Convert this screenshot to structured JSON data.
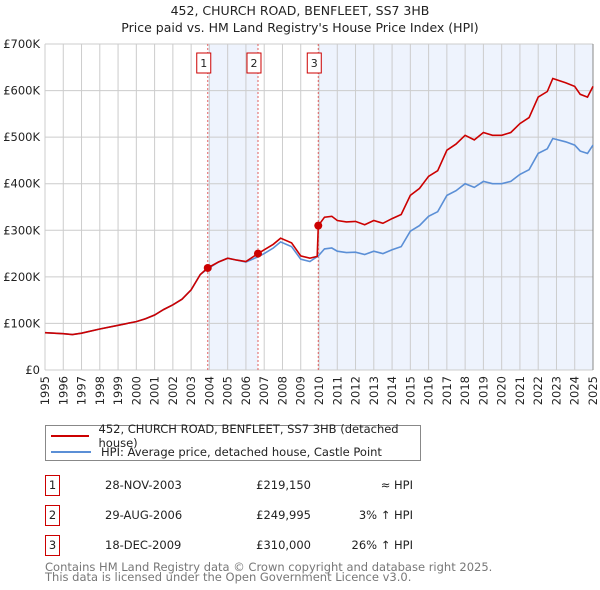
{
  "chart_data": {
    "type": "line",
    "title": "452, CHURCH ROAD, BENFLEET, SS7 3HB",
    "subtitle": "Price paid vs. HM Land Registry's House Price Index (HPI)",
    "xlim": [
      1995,
      2025
    ],
    "ylim": [
      0,
      700000
    ],
    "x_ticks": [
      "1995",
      "1996",
      "1997",
      "1998",
      "1999",
      "2000",
      "2001",
      "2002",
      "2003",
      "2004",
      "2005",
      "2006",
      "2007",
      "2008",
      "2009",
      "2010",
      "2011",
      "2012",
      "2013",
      "2014",
      "2015",
      "2016",
      "2017",
      "2018",
      "2019",
      "2020",
      "2021",
      "2022",
      "2023",
      "2024",
      "2025"
    ],
    "y_ticks": [
      {
        "v": 0,
        "label": "£0"
      },
      {
        "v": 100000,
        "label": "£100K"
      },
      {
        "v": 200000,
        "label": "£200K"
      },
      {
        "v": 300000,
        "label": "£300K"
      },
      {
        "v": 400000,
        "label": "£400K"
      },
      {
        "v": 500000,
        "label": "£500K"
      },
      {
        "v": 600000,
        "label": "£600K"
      },
      {
        "v": 700000,
        "label": "£700K"
      }
    ],
    "grid": true,
    "series": [
      {
        "name": "452, CHURCH ROAD, BENFLEET, SS7 3HB (detached house)",
        "color": "#cc0000",
        "x": [
          1995,
          1996,
          1996.5,
          1997,
          1998,
          1999,
          2000,
          2000.5,
          2001,
          2001.5,
          2002,
          2002.5,
          2003,
          2003.5,
          2003.9,
          2004.5,
          2005,
          2005.5,
          2006,
          2006.66,
          2007,
          2007.5,
          2007.9,
          2008.5,
          2009,
          2009.5,
          2009.9,
          2009.96,
          2010.3,
          2010.7,
          2011,
          2011.5,
          2012,
          2012.5,
          2013,
          2013.5,
          2014,
          2014.5,
          2015,
          2015.5,
          2016,
          2016.5,
          2017,
          2017.5,
          2018,
          2018.5,
          2019,
          2019.5,
          2020,
          2020.5,
          2021,
          2021.5,
          2022,
          2022.5,
          2022.8,
          2023.5,
          2024,
          2024.3,
          2024.7,
          2025
        ],
        "y": [
          80000,
          78000,
          76000,
          79000,
          88000,
          96000,
          104000,
          110000,
          118000,
          130000,
          140000,
          152000,
          172000,
          205000,
          219150,
          232000,
          240000,
          236000,
          233000,
          249995,
          258000,
          270000,
          283000,
          273000,
          245000,
          240000,
          244000,
          310000,
          328000,
          330000,
          321000,
          318000,
          319000,
          312000,
          321000,
          315000,
          325000,
          334000,
          375000,
          390000,
          416000,
          428000,
          472000,
          485000,
          504000,
          494000,
          510000,
          504000,
          504000,
          510000,
          529000,
          542000,
          586000,
          598000,
          626000,
          617000,
          609000,
          592000,
          586000,
          609000
        ]
      },
      {
        "name": "HPI: Average price, detached house, Castle Point",
        "color": "#5b8fd6",
        "x": [
          1995,
          1996,
          1996.5,
          1997,
          1998,
          1999,
          2000,
          2000.5,
          2001,
          2001.5,
          2002,
          2002.5,
          2003,
          2003.5,
          2003.9,
          2004.5,
          2005,
          2005.5,
          2006,
          2006.66,
          2007,
          2007.5,
          2007.9,
          2008.5,
          2009,
          2009.5,
          2009.96,
          2010.3,
          2010.7,
          2011,
          2011.5,
          2012,
          2012.5,
          2013,
          2013.5,
          2014,
          2014.5,
          2015,
          2015.5,
          2016,
          2016.5,
          2017,
          2017.5,
          2018,
          2018.5,
          2019,
          2019.5,
          2020,
          2020.5,
          2021,
          2021.5,
          2022,
          2022.5,
          2022.8,
          2023.5,
          2024,
          2024.3,
          2024.7,
          2025
        ],
        "y": [
          80000,
          78000,
          76000,
          79000,
          88000,
          96000,
          104000,
          110000,
          118000,
          130000,
          140000,
          152000,
          172000,
          205000,
          217000,
          232000,
          240000,
          236000,
          232000,
          243000,
          250000,
          262000,
          275000,
          265000,
          238000,
          233000,
          245000,
          260000,
          262000,
          255000,
          252000,
          253000,
          248000,
          255000,
          250000,
          258000,
          265000,
          298000,
          310000,
          330000,
          340000,
          375000,
          385000,
          400000,
          392000,
          405000,
          400000,
          400000,
          405000,
          420000,
          430000,
          465000,
          475000,
          497000,
          490000,
          483000,
          470000,
          465000,
          483000
        ]
      }
    ],
    "sales": [
      {
        "label": "1",
        "x": 2003.91,
        "price": 219150
      },
      {
        "label": "2",
        "x": 2006.66,
        "price": 249995
      },
      {
        "label": "3",
        "x": 2009.96,
        "price": 310000
      }
    ],
    "shaded_color": "#eef3fd",
    "legend_position": "below"
  },
  "legend": [
    {
      "label": "452, CHURCH ROAD, BENFLEET, SS7 3HB (detached house)"
    },
    {
      "label": "HPI: Average price, detached house, Castle Point"
    }
  ],
  "table": [
    {
      "num": "1",
      "date": "28-NOV-2003",
      "price": "£219,150",
      "hpi": "≈ HPI"
    },
    {
      "num": "2",
      "date": "29-AUG-2006",
      "price": "£249,995",
      "hpi": "3% ↑ HPI"
    },
    {
      "num": "3",
      "date": "18-DEC-2009",
      "price": "£310,000",
      "hpi": "26% ↑ HPI"
    }
  ],
  "footer": {
    "line1": "Contains HM Land Registry data © Crown copyright and database right 2025.",
    "line2": "This data is licensed under the Open Government Licence v3.0."
  }
}
